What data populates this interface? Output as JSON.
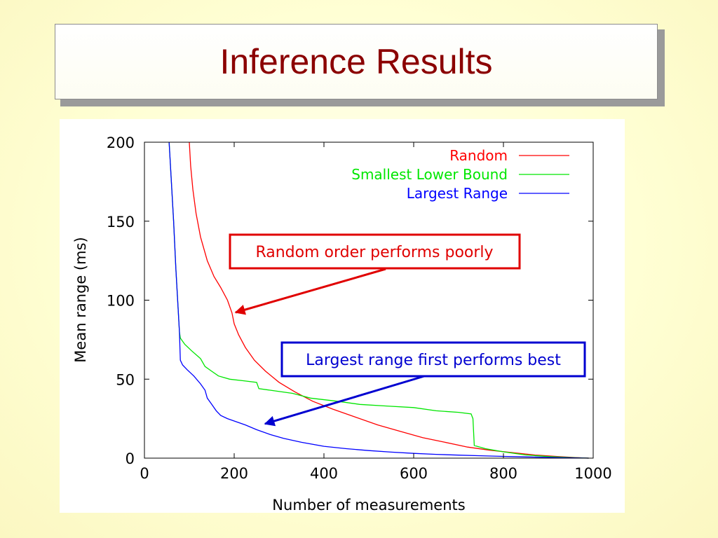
{
  "slide": {
    "title": "Inference Results"
  },
  "colors": {
    "title": "#8b0000",
    "random": "#ff0000",
    "smallest_lower_bound": "#00e600",
    "largest_range": "#0000ff",
    "annotation_red": "#e00000",
    "annotation_blue": "#0000d0"
  },
  "annotations": {
    "red_callout": "Random order performs poorly",
    "blue_callout": "Largest range first performs best"
  },
  "chart_data": {
    "type": "line",
    "title": "",
    "xlabel": "Number of measurements",
    "ylabel": "Mean range (ms)",
    "xlim": [
      0,
      1000
    ],
    "ylim": [
      0,
      200
    ],
    "xticks": [
      "0",
      "200",
      "400",
      "600",
      "800",
      "1000"
    ],
    "yticks": [
      "0",
      "50",
      "100",
      "150",
      "200"
    ],
    "grid": false,
    "legend_position": "top-right",
    "series": [
      {
        "name": "Random",
        "color": "#ff0000",
        "points": [
          [
            100,
            200
          ],
          [
            103,
            185
          ],
          [
            108,
            170
          ],
          [
            115,
            155
          ],
          [
            125,
            140
          ],
          [
            140,
            125
          ],
          [
            155,
            115
          ],
          [
            170,
            108
          ],
          [
            185,
            100
          ],
          [
            195,
            92
          ],
          [
            200,
            85
          ],
          [
            210,
            78
          ],
          [
            225,
            70
          ],
          [
            245,
            62
          ],
          [
            270,
            55
          ],
          [
            300,
            48
          ],
          [
            335,
            42
          ],
          [
            375,
            36
          ],
          [
            420,
            31
          ],
          [
            470,
            26
          ],
          [
            520,
            21
          ],
          [
            570,
            17
          ],
          [
            620,
            13
          ],
          [
            670,
            10
          ],
          [
            720,
            7
          ],
          [
            770,
            5
          ],
          [
            820,
            3.5
          ],
          [
            870,
            2
          ],
          [
            920,
            1
          ],
          [
            960,
            0.4
          ],
          [
            990,
            0
          ]
        ]
      },
      {
        "name": "Smallest Lower Bound",
        "color": "#00e600",
        "points": [
          [
            55,
            200
          ],
          [
            60,
            175
          ],
          [
            65,
            150
          ],
          [
            70,
            120
          ],
          [
            75,
            95
          ],
          [
            78,
            80
          ],
          [
            80,
            76
          ],
          [
            90,
            72
          ],
          [
            105,
            68
          ],
          [
            125,
            63
          ],
          [
            135,
            58
          ],
          [
            150,
            55
          ],
          [
            165,
            52
          ],
          [
            190,
            50
          ],
          [
            220,
            49
          ],
          [
            250,
            48
          ],
          [
            255,
            44
          ],
          [
            280,
            43
          ],
          [
            330,
            41
          ],
          [
            370,
            38
          ],
          [
            430,
            36
          ],
          [
            480,
            34
          ],
          [
            540,
            33
          ],
          [
            600,
            32
          ],
          [
            650,
            30
          ],
          [
            700,
            29
          ],
          [
            728,
            28
          ],
          [
            732,
            25
          ],
          [
            735,
            8
          ],
          [
            760,
            6
          ],
          [
            800,
            4
          ],
          [
            850,
            2
          ],
          [
            900,
            1
          ],
          [
            950,
            0.4
          ],
          [
            990,
            0
          ]
        ]
      },
      {
        "name": "Largest Range",
        "color": "#0000ff",
        "points": [
          [
            55,
            200
          ],
          [
            60,
            175
          ],
          [
            65,
            150
          ],
          [
            70,
            120
          ],
          [
            75,
            95
          ],
          [
            78,
            80
          ],
          [
            80,
            62
          ],
          [
            85,
            59
          ],
          [
            95,
            56
          ],
          [
            110,
            52
          ],
          [
            125,
            47
          ],
          [
            135,
            43
          ],
          [
            140,
            38
          ],
          [
            150,
            34
          ],
          [
            160,
            30
          ],
          [
            170,
            27
          ],
          [
            185,
            25
          ],
          [
            205,
            23
          ],
          [
            225,
            21
          ],
          [
            250,
            18
          ],
          [
            280,
            15
          ],
          [
            310,
            12.5
          ],
          [
            350,
            10
          ],
          [
            400,
            7.5
          ],
          [
            450,
            6
          ],
          [
            500,
            4.8
          ],
          [
            550,
            3.8
          ],
          [
            600,
            3
          ],
          [
            650,
            2.4
          ],
          [
            700,
            1.9
          ],
          [
            750,
            1.5
          ],
          [
            800,
            1.1
          ],
          [
            850,
            0.8
          ],
          [
            900,
            0.5
          ],
          [
            950,
            0.2
          ],
          [
            990,
            0
          ]
        ]
      }
    ]
  }
}
